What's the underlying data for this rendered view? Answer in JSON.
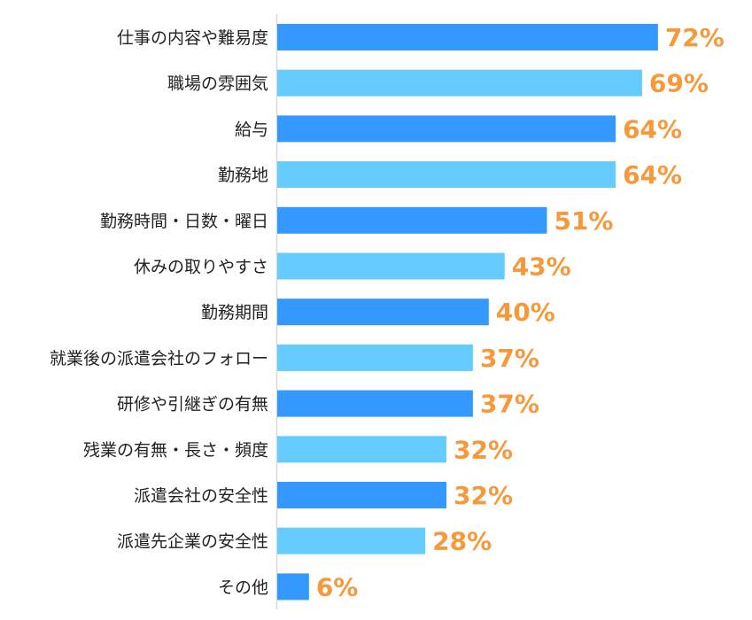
{
  "chart_data": {
    "type": "bar",
    "orientation": "horizontal",
    "categories": [
      "仕事の内容や難易度",
      "職場の雰囲気",
      "給与",
      "勤務地",
      "勤務時間・日数・曜日",
      "休みの取りやすさ",
      "勤務期間",
      "就業後の派遣会社のフォロー",
      "研修や引継ぎの有無",
      "残業の有無・長さ・頻度",
      "派遣会社の安全性",
      "派遣先企業の安全性",
      "その他"
    ],
    "values": [
      72,
      69,
      64,
      64,
      51,
      43,
      40,
      37,
      37,
      32,
      32,
      28,
      6
    ],
    "value_labels": [
      "72%",
      "69%",
      "64%",
      "64%",
      "51%",
      "43%",
      "40%",
      "37%",
      "37%",
      "32%",
      "32%",
      "28%",
      "6%"
    ],
    "title": "",
    "xlabel": "",
    "ylabel": "",
    "xlim": [
      0,
      90
    ],
    "grid": false,
    "legend": "none",
    "colors": {
      "dark": "#3399FF",
      "light": "#66CCFF",
      "label": "#F7993A",
      "axis": "#D9D9D9"
    }
  }
}
